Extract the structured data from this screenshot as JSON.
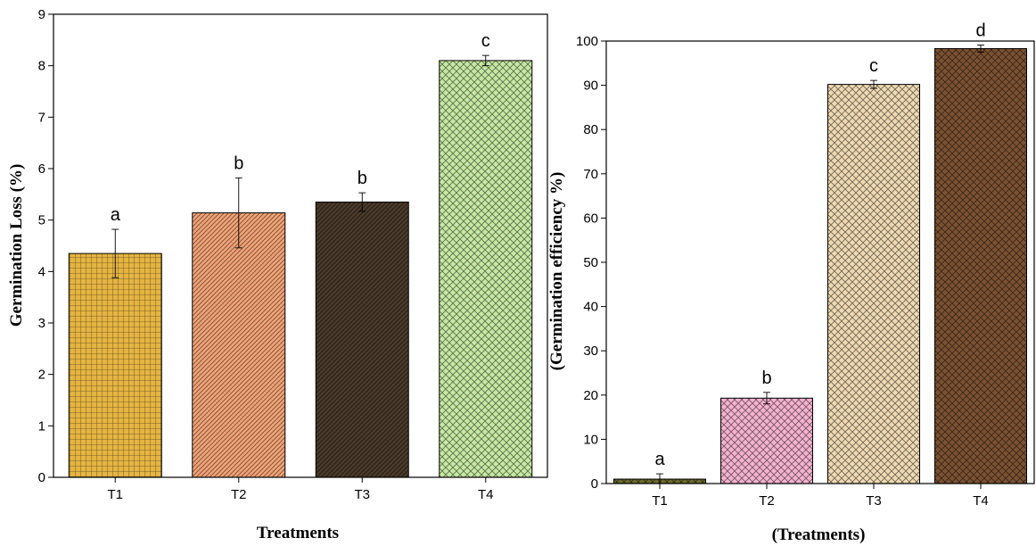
{
  "chart_data": [
    {
      "type": "bar",
      "xlabel": "Treatments",
      "ylabel": "Germination Loss (%)",
      "ylim": [
        0,
        9
      ],
      "yticks": [
        0,
        1,
        2,
        3,
        4,
        5,
        6,
        7,
        8,
        9
      ],
      "grid": false,
      "categories": [
        "T1",
        "T2",
        "T3",
        "T4"
      ],
      "values": [
        4.35,
        5.14,
        5.35,
        8.1
      ],
      "errors": [
        0.47,
        0.68,
        0.18,
        0.1
      ],
      "labels": [
        "a",
        "b",
        "b",
        "c"
      ],
      "colors": [
        "#E5B442",
        "#F2A376",
        "#4A3A2A",
        "#C6E9A2"
      ],
      "patterns": [
        "grid",
        "diagonal",
        "diagonal",
        "crosshatch"
      ]
    },
    {
      "type": "bar",
      "xlabel": "(Treatments)",
      "ylabel": "(Germination efficiency %)",
      "ylim": [
        0,
        100
      ],
      "yticks": [
        0,
        10,
        20,
        30,
        40,
        50,
        60,
        70,
        80,
        90,
        100
      ],
      "grid": false,
      "categories": [
        "T1",
        "T2",
        "T3",
        "T4"
      ],
      "values": [
        1.0,
        19.3,
        90.2,
        98.3
      ],
      "errors": [
        1.2,
        1.3,
        0.9,
        0.8
      ],
      "labels": [
        "a",
        "b",
        "c",
        "d"
      ],
      "colors": [
        "#6E6A2E",
        "#F4B2CF",
        "#EED9B2",
        "#7B5132"
      ],
      "patterns": [
        "crosshatch",
        "crosshatch",
        "crosshatch",
        "crosshatch"
      ]
    }
  ]
}
